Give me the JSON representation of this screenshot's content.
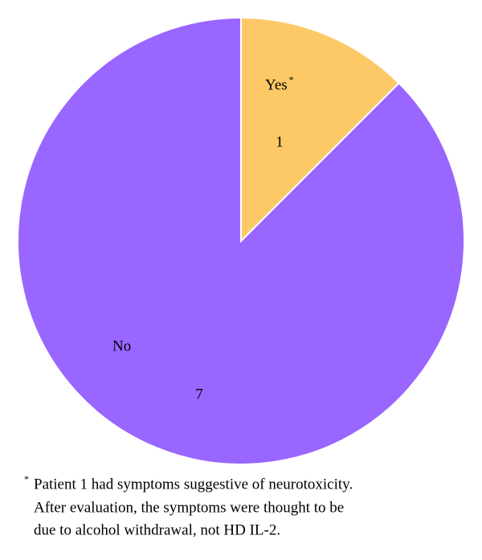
{
  "chart_data": {
    "type": "pie",
    "categories": [
      "Yes",
      "No"
    ],
    "values": [
      1,
      7
    ],
    "colors": [
      "#fdc966",
      "#9966ff"
    ],
    "footnote": {
      "marker": "*",
      "lines": [
        "Patient 1 had symptoms suggestive of neurotoxicity.",
        "After evaluation, the symptoms were thought to be",
        "due to alcohol withdrawal, not HD IL-2."
      ]
    }
  }
}
